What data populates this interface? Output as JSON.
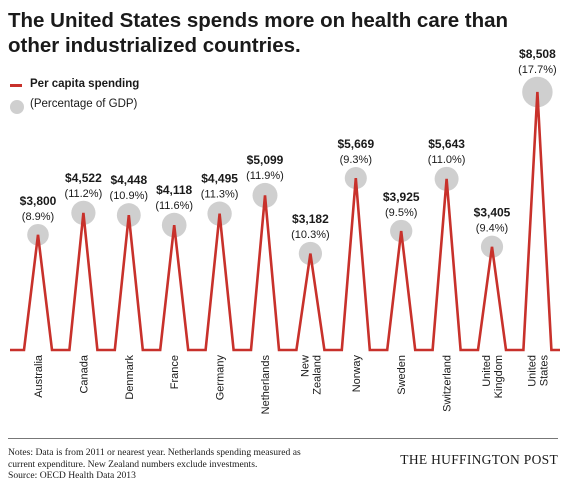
{
  "header": {
    "title_line1": "The United States spends more on health care than",
    "title_line2": "other industrialized countries."
  },
  "legend": {
    "spending_label": "Per capita spending",
    "gdp_label": "(Percentage of GDP)"
  },
  "colors": {
    "spending_line": "#c8312b",
    "gdp_bubble": "#cfcfcf"
  },
  "chart_data": {
    "type": "line",
    "categories": [
      "Australia",
      "Canada",
      "Denmark",
      "France",
      "Germany",
      "Netherlands",
      "New Zealand",
      "Norway",
      "Sweden",
      "Switzerland",
      "United Kingdom",
      "United States"
    ],
    "category_lines": [
      [
        "Australia"
      ],
      [
        "Canada"
      ],
      [
        "Denmark"
      ],
      [
        "France"
      ],
      [
        "Germany"
      ],
      [
        "Netherlands"
      ],
      [
        "New",
        "Zealand"
      ],
      [
        "Norway"
      ],
      [
        "Sweden"
      ],
      [
        "Switzerland"
      ],
      [
        "United",
        "Kingdom"
      ],
      [
        "United",
        "States"
      ]
    ],
    "series": [
      {
        "name": "Per capita spending",
        "values": [
          3800,
          4522,
          4448,
          4118,
          4495,
          5099,
          3182,
          5669,
          3925,
          5643,
          3405,
          8508
        ]
      },
      {
        "name": "(Percentage of GDP)",
        "values": [
          8.9,
          11.2,
          10.9,
          11.6,
          11.3,
          11.9,
          10.3,
          9.3,
          9.5,
          11.0,
          9.4,
          17.7
        ]
      }
    ],
    "value_labels": [
      "$3,800",
      "$4,522",
      "$4,448",
      "$4,118",
      "$4,495",
      "$5,099",
      "$3,182",
      "$5,669",
      "$3,925",
      "$5,643",
      "$3,405",
      "$8,508"
    ],
    "gdp_labels": [
      "(8.9%)",
      "(11.2%)",
      "(10.9%)",
      "(11.6%)",
      "(11.3%)",
      "(11.9%)",
      "(10.3%)",
      "(9.3%)",
      "(9.5%)",
      "(11.0%)",
      "(9.4%)",
      "(17.7%)"
    ],
    "ylim": [
      0,
      8508
    ],
    "grid": false,
    "legend_position": "top-left"
  },
  "notes": {
    "line1": "Notes: Data is from 2011 or nearest year. Netherlands spending measured as",
    "line2": "current expenditure. New Zealand numbers exclude investments.",
    "source": "Source: OECD Health Data 2013"
  },
  "brand": "THE HUFFINGTON POST"
}
